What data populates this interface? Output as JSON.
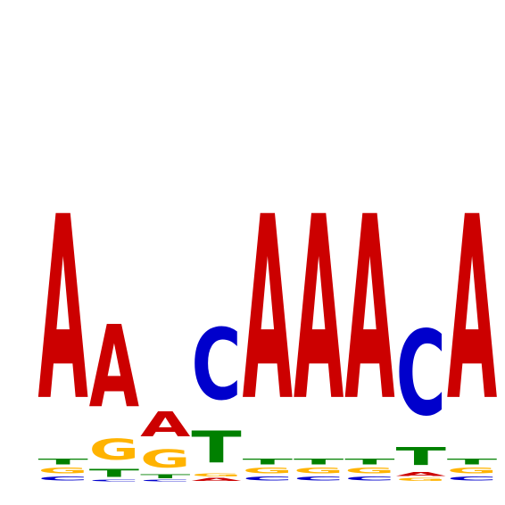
{
  "chart_data": {
    "type": "sequence-logo",
    "alphabet": [
      "A",
      "C",
      "G",
      "T"
    ],
    "colors": {
      "A": "#cc0000",
      "C": "#0000cc",
      "G": "#ffb300",
      "T": "#008000"
    },
    "ylim": [
      0,
      2
    ],
    "positions": [
      {
        "A": 1.34,
        "C": 0.03,
        "G": 0.04,
        "T": 0.04
      },
      {
        "A": 0.6,
        "C": 0.01,
        "G": 0.15,
        "T": 0.06
      },
      {
        "A": 0.18,
        "C": 0.01,
        "G": 0.13,
        "T": 0.03
      },
      {
        "A": 0.02,
        "C": 0.52,
        "G": 0.02,
        "T": 0.23
      },
      {
        "A": 1.34,
        "C": 0.03,
        "G": 0.04,
        "T": 0.04
      },
      {
        "A": 1.34,
        "C": 0.03,
        "G": 0.04,
        "T": 0.04
      },
      {
        "A": 1.34,
        "C": 0.03,
        "G": 0.04,
        "T": 0.04
      },
      {
        "A": 0.03,
        "C": 0.62,
        "G": 0.02,
        "T": 0.13
      },
      {
        "A": 1.34,
        "C": 0.03,
        "G": 0.04,
        "T": 0.04
      }
    ]
  }
}
